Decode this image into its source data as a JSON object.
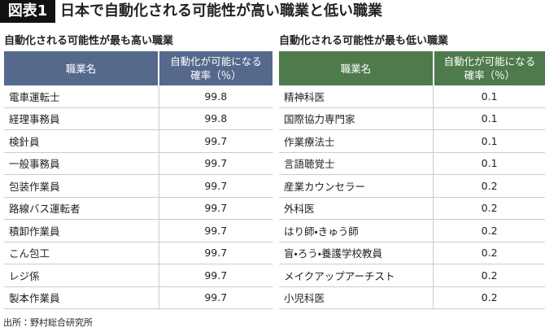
{
  "header": {
    "label": "図表1",
    "title": "日本で自動化される可能性が高い職業と低い職業"
  },
  "tables": [
    {
      "title": "自動化される可能性が最も高い職業",
      "columns": [
        "職業名",
        [
          "自動化が可能になる",
          "確率（％）"
        ]
      ],
      "rows": [
        [
          "電車運転士",
          "99.8"
        ],
        [
          "経理事務員",
          "99.8"
        ],
        [
          "検針員",
          "99.7"
        ],
        [
          "一般事務員",
          "99.7"
        ],
        [
          "包装作業員",
          "99.7"
        ],
        [
          "路線バス運転者",
          "99.7"
        ],
        [
          "積卸作業員",
          "99.7"
        ],
        [
          "こん包工",
          "99.7"
        ],
        [
          "レジ係",
          "99.7"
        ],
        [
          "製本作業員",
          "99.7"
        ]
      ]
    },
    {
      "title": "自動化される可能性が最も低い職業",
      "columns": [
        "職業名",
        [
          "自動化が可能になる",
          "確率（％）"
        ]
      ],
      "rows": [
        [
          "精神科医",
          "0.1"
        ],
        [
          "国際協力専門家",
          "0.1"
        ],
        [
          "作業療法士",
          "0.1"
        ],
        [
          "言語聴覚士",
          "0.1"
        ],
        [
          "産業カウンセラー",
          "0.2"
        ],
        [
          "外科医",
          "0.2"
        ],
        [
          "はり師・きゅう師",
          "0.2"
        ],
        [
          "盲・ろう・養護学校教員",
          "0.2"
        ],
        [
          "メイクアップアーチスト",
          "0.2"
        ],
        [
          "小児科医",
          "0.2"
        ]
      ]
    }
  ],
  "source": "出所：野村総合研究所"
}
